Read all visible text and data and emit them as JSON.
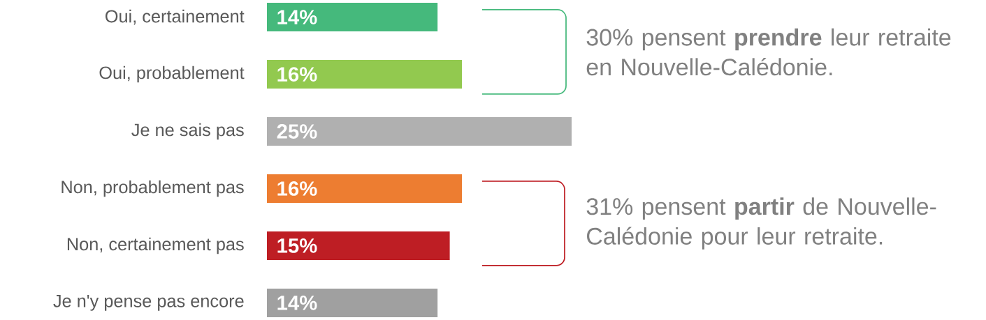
{
  "chart_data": {
    "type": "bar",
    "orientation": "horizontal",
    "categories": [
      "Oui, certainement",
      "Oui, probablement",
      "Je ne sais pas",
      "Non, probablement pas",
      "Non, certainement pas",
      "Je n'y pense pas encore"
    ],
    "values": [
      14,
      16,
      25,
      16,
      15,
      14
    ],
    "colors": [
      "#45b97c",
      "#92c94f",
      "#b0b0b0",
      "#ed7d31",
      "#be1e24",
      "#a0a0a0"
    ],
    "value_labels": [
      "14%",
      "16%",
      "25%",
      "16%",
      "15%",
      "14%"
    ],
    "annotations": [
      "30% pensent **prendre** leur retraite en Nouvelle-Calédonie.",
      "31% pensent **partir** de Nouvelle-Calédonie pour leur retraite."
    ]
  }
}
